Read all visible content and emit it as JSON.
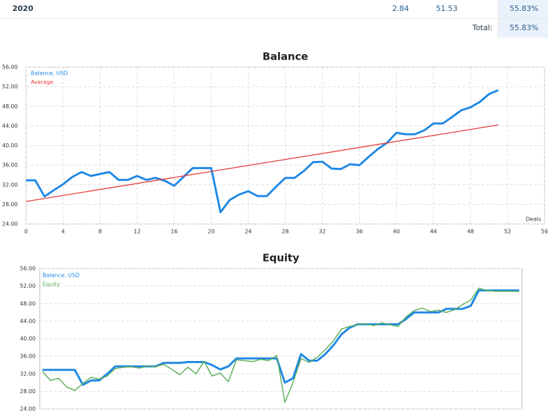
{
  "table": {
    "rows": [
      [
        "2020",
        "2.84",
        "51.53",
        "55.83%"
      ]
    ],
    "total_label": "Total:",
    "total_value": "55.83%"
  },
  "chart_data": [
    {
      "type": "line",
      "title": "Balance",
      "x_label": "Deals",
      "grid": true,
      "xlim": [
        0,
        56
      ],
      "xticks": [
        0,
        4,
        8,
        12,
        16,
        20,
        24,
        28,
        32,
        36,
        40,
        44,
        48,
        52,
        56
      ],
      "ylim": [
        24,
        56
      ],
      "yticks": [
        {
          "value": 24,
          "label": "24.00"
        },
        {
          "value": 28,
          "label": "28.00"
        },
        {
          "value": 32,
          "label": "32.00"
        },
        {
          "value": 36,
          "label": "36.00"
        },
        {
          "value": 40,
          "label": "40.00"
        },
        {
          "value": 44,
          "label": "44.00"
        },
        {
          "value": 48,
          "label": "48.00"
        },
        {
          "value": 52,
          "label": "52.00"
        },
        {
          "value": 56,
          "label": "56.00"
        }
      ],
      "series": [
        {
          "name": "Balance, USD",
          "color": "#1e88e5",
          "x": [
            0,
            1,
            2,
            3,
            4,
            5,
            6,
            7,
            8,
            9,
            10,
            11,
            12,
            13,
            14,
            15,
            16,
            17,
            18,
            19,
            20,
            21,
            22,
            23,
            24,
            25,
            26,
            27,
            28,
            29,
            30,
            31,
            32,
            33,
            34,
            35,
            36,
            37,
            38,
            39,
            40,
            41,
            42,
            43,
            44,
            45,
            46,
            47,
            48,
            49,
            50,
            51
          ],
          "values": [
            32.9,
            32.9,
            29.6,
            30.9,
            32.1,
            33.6,
            34.6,
            33.8,
            34.2,
            34.6,
            33.0,
            33.0,
            33.8,
            33.0,
            33.4,
            32.8,
            31.8,
            33.6,
            35.4,
            35.4,
            35.4,
            26.4,
            28.9,
            30.0,
            30.7,
            29.7,
            29.7,
            31.6,
            33.4,
            33.4,
            34.8,
            36.6,
            36.7,
            35.3,
            35.2,
            36.2,
            36.0,
            37.7,
            39.3,
            40.6,
            42.6,
            42.3,
            42.3,
            43.1,
            44.5,
            44.5,
            45.8,
            47.2,
            47.8,
            48.9,
            50.5,
            51.3
          ]
        },
        {
          "name": "Average",
          "color": "#e53935",
          "x": [
            0,
            51
          ],
          "values": [
            28.6,
            44.2
          ]
        }
      ]
    },
    {
      "type": "line",
      "title": "Equity",
      "grid": true,
      "ylim": [
        24,
        56
      ],
      "yticks": [
        {
          "value": 24,
          "label": "24.00"
        },
        {
          "value": 28,
          "label": "28.00"
        },
        {
          "value": 32,
          "label": "32.00"
        },
        {
          "value": 36,
          "label": "36.00"
        },
        {
          "value": 40,
          "label": "40.00"
        },
        {
          "value": 44,
          "label": "44.00"
        },
        {
          "value": 48,
          "label": "48.00"
        },
        {
          "value": 52,
          "label": "52.00"
        },
        {
          "value": 56,
          "label": "56.00"
        }
      ],
      "series": [
        {
          "name": "Balance, USD",
          "color": "#1e88e5",
          "values": [
            32.9,
            32.9,
            32.9,
            32.9,
            32.9,
            29.5,
            30.5,
            30.5,
            32.0,
            33.7,
            33.7,
            33.7,
            33.7,
            33.7,
            33.7,
            34.5,
            34.5,
            34.5,
            34.7,
            34.7,
            34.7,
            34.0,
            33.0,
            33.7,
            35.5,
            35.5,
            35.5,
            35.5,
            35.5,
            35.5,
            30.0,
            31.0,
            36.5,
            35.0,
            35.0,
            36.5,
            38.5,
            41.0,
            42.5,
            43.3,
            43.3,
            43.3,
            43.3,
            43.3,
            43.3,
            44.5,
            46.0,
            46.0,
            46.0,
            46.0,
            46.8,
            46.8,
            46.8,
            47.5,
            51.0,
            51.0,
            51.0,
            51.0,
            51.0,
            51.0
          ]
        },
        {
          "name": "Equity",
          "color": "#5cad5c",
          "values": [
            32.5,
            30.5,
            31.0,
            29.0,
            28.2,
            29.8,
            31.2,
            30.8,
            31.5,
            33.2,
            33.5,
            33.6,
            33.3,
            33.8,
            33.6,
            34.2,
            33.0,
            31.8,
            33.5,
            32.0,
            34.8,
            31.5,
            32.2,
            30.2,
            35.2,
            35.0,
            34.8,
            35.3,
            35.0,
            36.2,
            25.5,
            30.0,
            35.5,
            34.6,
            35.8,
            37.5,
            39.5,
            42.2,
            42.8,
            43.2,
            43.4,
            43.0,
            43.6,
            43.2,
            42.8,
            45.0,
            46.4,
            47.0,
            46.2,
            46.5,
            46.0,
            46.6,
            47.8,
            48.8,
            51.5,
            51.0,
            50.8,
            50.8,
            50.8,
            50.8
          ]
        }
      ]
    }
  ]
}
